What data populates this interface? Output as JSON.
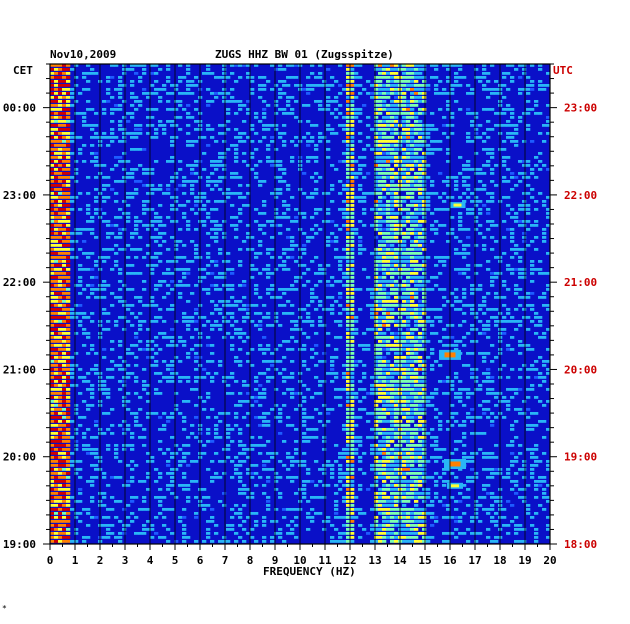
{
  "header": {
    "date": "Nov10,2009",
    "station": "ZUGS HHZ BW 01 (Zugsspitze)",
    "left_tz": "CET",
    "right_tz": "UTC"
  },
  "footer_mark": "*",
  "colors": {
    "background": "#0a10c8",
    "grid": "#000000",
    "utc_label": "#cc0000"
  },
  "chart_data": {
    "type": "heatmap",
    "title": "ZUGS HHZ BW 01 (Zugsspitze)",
    "xlabel": "FREQUENCY (HZ)",
    "x_ticks": [
      "0",
      "1",
      "2",
      "3",
      "4",
      "5",
      "6",
      "7",
      "8",
      "9",
      "10",
      "11",
      "12",
      "13",
      "14",
      "15",
      "16",
      "17",
      "18",
      "19",
      "20"
    ],
    "xlim": [
      0,
      20
    ],
    "y_ticks_cet": [
      "00:00",
      "23:00",
      "22:00",
      "21:00",
      "20:00",
      "19:00"
    ],
    "y_ticks_utc": [
      "23:00",
      "22:00",
      "21:00",
      "20:00",
      "19:00",
      "18:00"
    ],
    "colormap": [
      "#0a10c8",
      "#1e5cff",
      "#29b6f6",
      "#7cffb0",
      "#ffff33",
      "#ff8000",
      "#d00000"
    ],
    "energy_bands": [
      {
        "f_from": 0.0,
        "f_to": 0.8,
        "level": "high"
      },
      {
        "f_from": 11.8,
        "f_to": 12.1,
        "level": "medium"
      },
      {
        "f_from": 13.0,
        "f_to": 15.0,
        "level": "low"
      }
    ],
    "hot_spots": [
      {
        "freq": 16.2,
        "time_utc": "18:55",
        "level": "high"
      },
      {
        "freq": 16.2,
        "time_utc": "18:40",
        "level": "medium"
      },
      {
        "freq": 16.0,
        "time_utc": "20:10",
        "level": "high"
      },
      {
        "freq": 16.3,
        "time_utc": "21:53",
        "level": "medium"
      }
    ]
  }
}
